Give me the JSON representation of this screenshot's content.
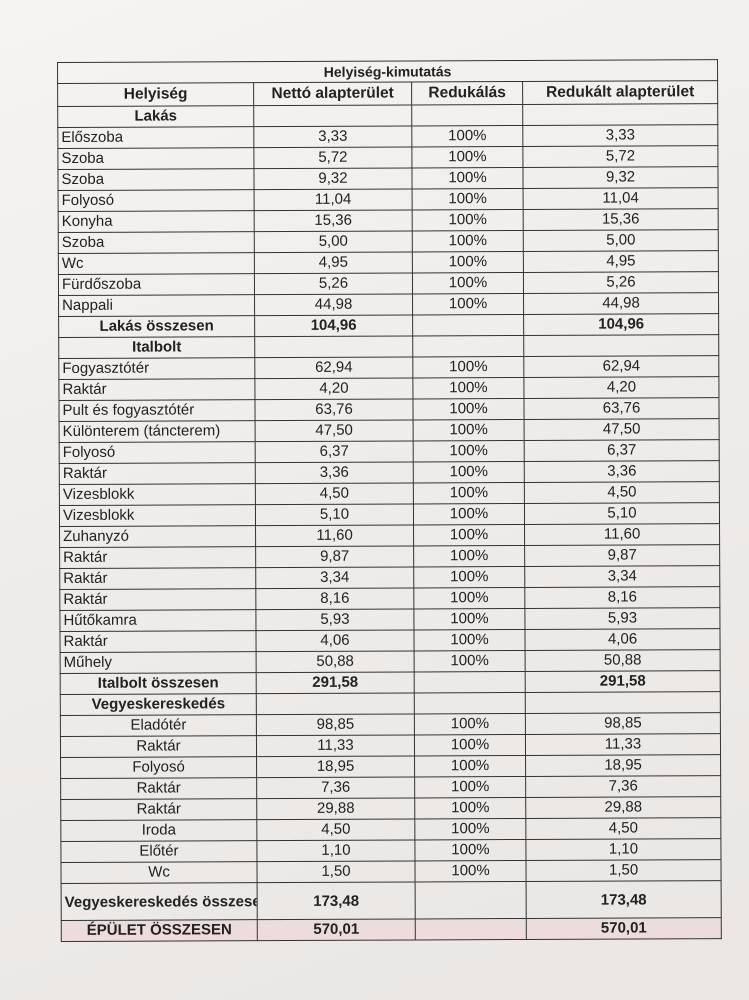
{
  "title": "Helyiség-kimutatás",
  "columns": [
    "Helyiség",
    "Nettó alapterület",
    "Redukálás",
    "Redukált alapterület"
  ],
  "sections": [
    {
      "name": "Lakás",
      "center_names": false,
      "rows": [
        [
          "Előszoba",
          "3,33",
          "100%",
          "3,33"
        ],
        [
          "Szoba",
          "5,72",
          "100%",
          "5,72"
        ],
        [
          "Szoba",
          "9,32",
          "100%",
          "9,32"
        ],
        [
          "Folyosó",
          "11,04",
          "100%",
          "11,04"
        ],
        [
          "Konyha",
          "15,36",
          "100%",
          "15,36"
        ],
        [
          "Szoba",
          "5,00",
          "100%",
          "5,00"
        ],
        [
          "Wc",
          "4,95",
          "100%",
          "4,95"
        ],
        [
          "Fürdőszoba",
          "5,26",
          "100%",
          "5,26"
        ],
        [
          "Nappali",
          "44,98",
          "100%",
          "44,98"
        ]
      ],
      "total": [
        "Lakás összesen",
        "104,96",
        "",
        "104,96"
      ]
    },
    {
      "name": "Italbolt",
      "center_names": false,
      "rows": [
        [
          "Fogyasztótér",
          "62,94",
          "100%",
          "62,94"
        ],
        [
          "Raktár",
          "4,20",
          "100%",
          "4,20"
        ],
        [
          "Pult és fogyasztótér",
          "63,76",
          "100%",
          "63,76"
        ],
        [
          "Különterem (táncterem)",
          "47,50",
          "100%",
          "47,50"
        ],
        [
          "Folyosó",
          "6,37",
          "100%",
          "6,37"
        ],
        [
          "Raktár",
          "3,36",
          "100%",
          "3,36"
        ],
        [
          "Vizesblokk",
          "4,50",
          "100%",
          "4,50"
        ],
        [
          "Vizesblokk",
          "5,10",
          "100%",
          "5,10"
        ],
        [
          "Zuhanyzó",
          "11,60",
          "100%",
          "11,60"
        ],
        [
          "Raktár",
          "9,87",
          "100%",
          "9,87"
        ],
        [
          "Raktár",
          "3,34",
          "100%",
          "3,34"
        ],
        [
          "Raktár",
          "8,16",
          "100%",
          "8,16"
        ],
        [
          "Hűtőkamra",
          "5,93",
          "100%",
          "5,93"
        ],
        [
          "Raktár",
          "4,06",
          "100%",
          "4,06"
        ],
        [
          "Műhely",
          "50,88",
          "100%",
          "50,88"
        ]
      ],
      "total": [
        "Italbolt összesen",
        "291,58",
        "",
        "291,58"
      ]
    },
    {
      "name": "Vegyeskereskedés",
      "center_names": true,
      "rows": [
        [
          "Eladótér",
          "98,85",
          "100%",
          "98,85"
        ],
        [
          "Raktár",
          "11,33",
          "100%",
          "11,33"
        ],
        [
          "Folyosó",
          "18,95",
          "100%",
          "18,95"
        ],
        [
          "Raktár",
          "7,36",
          "100%",
          "7,36"
        ],
        [
          "Raktár",
          "29,88",
          "100%",
          "29,88"
        ],
        [
          "Iroda",
          "4,50",
          "100%",
          "4,50"
        ],
        [
          "Előtér",
          "1,10",
          "100%",
          "1,10"
        ],
        [
          "Wc",
          "1,50",
          "100%",
          "1,50"
        ]
      ],
      "total": [
        "Vegyeskereskedés összesen",
        "173,48",
        "",
        "173,48"
      ]
    }
  ],
  "grand_total": [
    "ÉPÜLET ÖSSZESEN",
    "570,01",
    "",
    "570,01"
  ]
}
